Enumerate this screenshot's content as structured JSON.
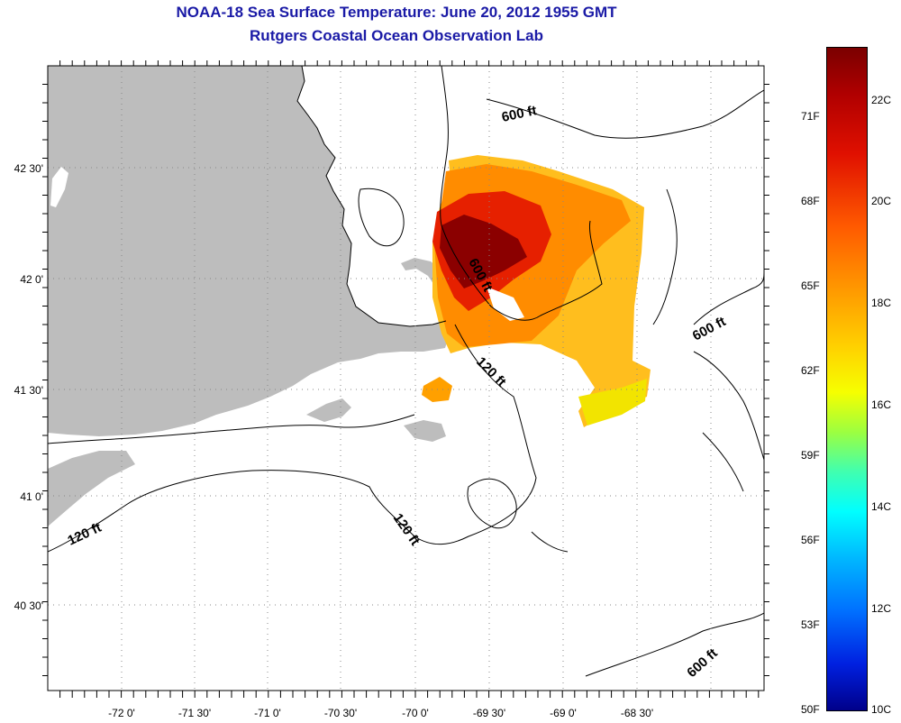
{
  "title": "NOAA-18 Sea Surface Temperature:  June 20, 2012 1955 GMT",
  "subtitle": "Rutgers Coastal Ocean Observation Lab",
  "map": {
    "lat_labels": [
      "42 30'",
      "42 0'",
      "41 30'",
      "41 0'",
      "40 30'"
    ],
    "lon_labels": [
      "-72 0'",
      "-71 30'",
      "-71 0'",
      "-70 30'",
      "-70 0'",
      "-69 30'",
      "-69 0'",
      "-68 30'"
    ],
    "contour_labels": [
      "600 ft",
      "600 ft",
      "600 ft",
      "600 ft",
      "120 ft",
      "120 ft",
      "120 ft"
    ],
    "land_color": "#bdbdbd",
    "sst_colors": [
      "#8b0000",
      "#c80000",
      "#ff3000",
      "#ff7a00",
      "#ffb000",
      "#ffd800",
      "#f2f200"
    ]
  },
  "colorbar": {
    "fahrenheit": [
      "71F",
      "68F",
      "65F",
      "62F",
      "59F",
      "56F",
      "53F",
      "50F"
    ],
    "celsius": [
      "22C",
      "20C",
      "18C",
      "16C",
      "14C",
      "12C",
      "10C"
    ]
  }
}
